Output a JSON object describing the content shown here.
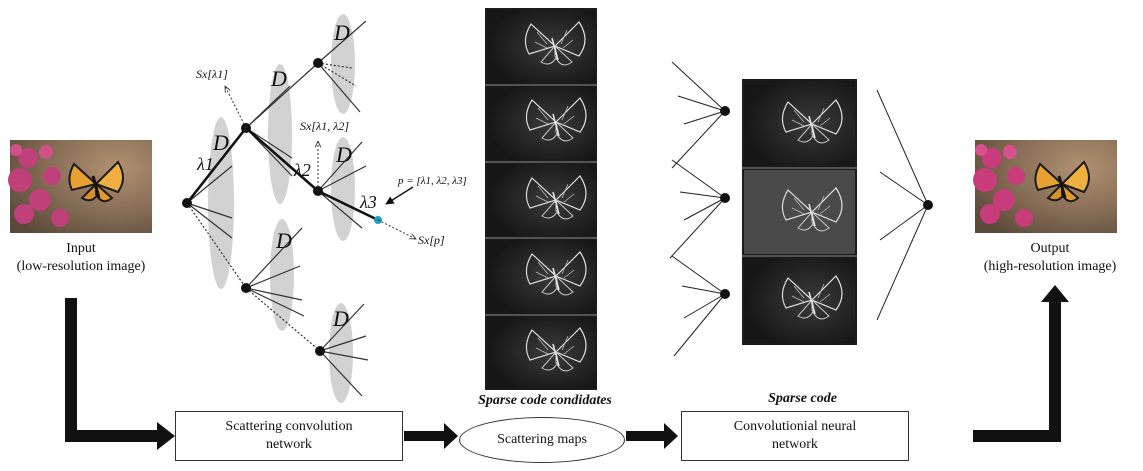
{
  "input": {
    "label": "Input",
    "sublabel": "(low-resolution image)"
  },
  "output": {
    "label": "Output",
    "sublabel": "(high-resolution image)"
  },
  "blocks": {
    "scattering_network_line1": "Scattering convolution",
    "scattering_network_line2": "network",
    "scattering_maps": "Scattering maps",
    "cnn_line1": "Convolutionial neural",
    "cnn_line2": "network"
  },
  "captions": {
    "sparse_code_candidates": "Sparse code condidates",
    "sparse_code": "Sparse code"
  },
  "tree": {
    "dictionary_symbol": "D",
    "lambda1": "λ1",
    "lambda2": "λ2",
    "lambda3": "λ3",
    "s_lambda1": "Sx[λ1]",
    "s_lambda12": "Sx[λ1, λ2]",
    "s_p": "Sx[p]",
    "path_def": "p = [λ1, λ2, λ3]"
  },
  "colors": {
    "flower": "#c0407a",
    "butterfly": "#e8a030",
    "dark_map": "#1e1e1e",
    "path_end": "#1a9fc0"
  }
}
